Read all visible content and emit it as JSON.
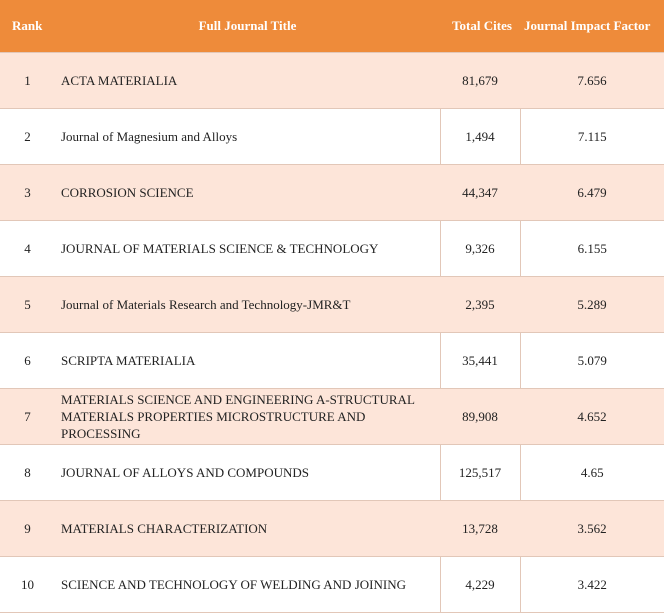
{
  "table": {
    "headers": {
      "rank": "Rank",
      "title": "Full Journal Title",
      "cites": "Total Cites",
      "jif": "Journal Impact Factor"
    },
    "rows": [
      {
        "rank": "1",
        "title": "ACTA MATERIALIA",
        "cites": "81,679",
        "jif": "7.656"
      },
      {
        "rank": "2",
        "title": "Journal of Magnesium and Alloys",
        "cites": "1,494",
        "jif": "7.115"
      },
      {
        "rank": "3",
        "title": "CORROSION SCIENCE",
        "cites": "44,347",
        "jif": "6.479"
      },
      {
        "rank": "4",
        "title": "JOURNAL OF MATERIALS SCIENCE & TECHNOLOGY",
        "cites": "9,326",
        "jif": "6.155"
      },
      {
        "rank": "5",
        "title": "Journal of Materials Research and Technology-JMR&T",
        "cites": "2,395",
        "jif": "5.289"
      },
      {
        "rank": "6",
        "title": "SCRIPTA MATERIALIA",
        "cites": "35,441",
        "jif": "5.079"
      },
      {
        "rank": "7",
        "title": "MATERIALS SCIENCE AND ENGINEERING A-STRUCTURAL MATERIALS PROPERTIES MICROSTRUCTURE AND PROCESSING",
        "cites": "89,908",
        "jif": "4.652"
      },
      {
        "rank": "8",
        "title": "JOURNAL OF ALLOYS AND COMPOUNDS",
        "cites": "125,517",
        "jif": "4.65"
      },
      {
        "rank": "9",
        "title": "MATERIALS CHARACTERIZATION",
        "cites": "13,728",
        "jif": "3.562"
      },
      {
        "rank": "10",
        "title": "SCIENCE AND TECHNOLOGY OF WELDING AND JOINING",
        "cites": "4,229",
        "jif": "3.422"
      }
    ]
  }
}
